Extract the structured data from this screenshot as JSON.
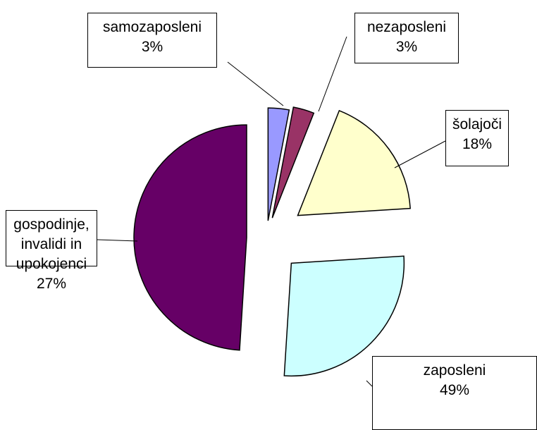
{
  "chart_data": {
    "type": "pie",
    "categories": [
      "samozaposleni",
      "nezaposleni",
      "šolajoči",
      "gospodinje, invalidi in upokojenci",
      "zaposleni"
    ],
    "values": [
      3,
      3,
      18,
      27,
      49
    ],
    "value_labels": [
      "3%",
      "3%",
      "18%",
      "27%",
      "49%"
    ],
    "colors": [
      "#9999ff",
      "#993366",
      "#ffffcc",
      "#ccffff",
      "#660066"
    ]
  }
}
